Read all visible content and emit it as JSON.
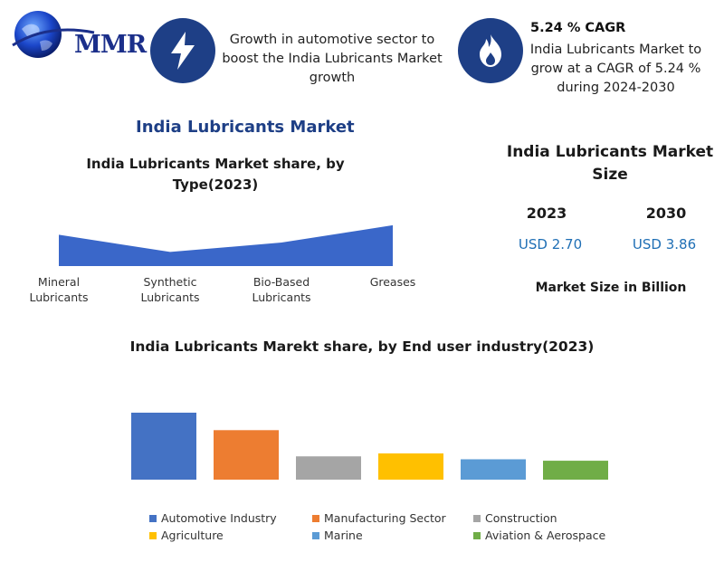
{
  "header": {
    "logo_text": "MMR",
    "growth_text": "Growth in automotive sector to boost the India Lubricants Market growth",
    "cagr_title": "5.24 % CAGR",
    "cagr_text": "India Lubricants Market to grow at a CAGR of 5.24 % during 2024-2030",
    "icon1": "lightning-bolt-icon",
    "icon2": "flame-icon",
    "icon_color": "#1e3f86"
  },
  "market_title": "India Lubricants Market",
  "market_size": {
    "title": "India Lubricants Market Size",
    "years": [
      "2023",
      "2030"
    ],
    "values": [
      "USD 2.70",
      "USD 3.86"
    ],
    "unit_label": "Market Size in Billion",
    "value_color": "#1f6fb5"
  },
  "chart_data": [
    {
      "type": "area",
      "title": "India Lubricants Market share, by Type(2023)",
      "categories": [
        "Mineral Lubricants",
        "Synthetic Lubricants",
        "Bio-Based Lubricants",
        "Greases"
      ],
      "tick_labels": [
        [
          "Mineral",
          "Lubricants"
        ],
        [
          "Synthetic",
          "Lubricants"
        ],
        [
          "Bio-Based",
          "Lubricants"
        ],
        [
          "Greases"
        ]
      ],
      "values": [
        40,
        18,
        30,
        52
      ],
      "color": "#3a67c9",
      "ylim": [
        0,
        60
      ]
    },
    {
      "type": "bar",
      "title": "India Lubricants Marekt share, by End user industry(2023)",
      "categories": [
        "Automotive Industry",
        "Manufacturing Sector",
        "Construction",
        "Agriculture",
        "Marine",
        "Aviation & Aerospace"
      ],
      "values": [
        46,
        34,
        16,
        18,
        14,
        13
      ],
      "colors": [
        "#4472c4",
        "#ed7d31",
        "#a5a5a5",
        "#ffc000",
        "#5b9bd5",
        "#70ad47"
      ],
      "ylim": [
        0,
        46
      ],
      "legend": "bottom"
    }
  ]
}
